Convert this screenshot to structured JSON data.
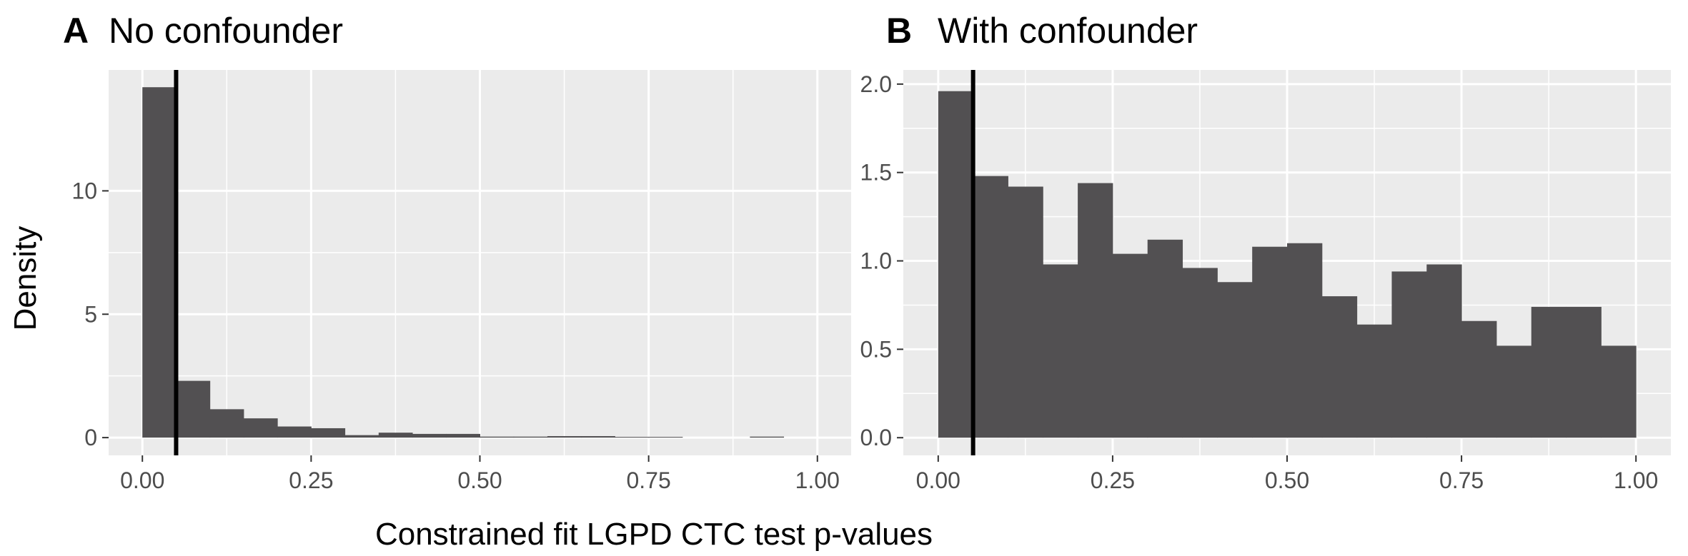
{
  "shared": {
    "xlabel": "Constrained fit LGPD CTC test p-values",
    "ylabel": "Density",
    "bar_color": "#525052",
    "panel_bg": "#ebebeb",
    "grid_color": "#ffffff",
    "vline_color": "#000000"
  },
  "chart_data": [
    {
      "type": "bar",
      "letter": "A",
      "title": "No confounder",
      "xlim": [
        -0.05,
        1.05
      ],
      "ylim": [
        -0.72,
        14.9
      ],
      "xticks": [
        0,
        0.25,
        0.5,
        0.75,
        1
      ],
      "xtick_labels": [
        "0.00",
        "0.25",
        "0.50",
        "0.75",
        "1.00"
      ],
      "yticks": [
        0,
        5,
        10
      ],
      "ytick_labels": [
        "0",
        "5",
        "10"
      ],
      "bin_width": 0.05,
      "bin_starts": [
        0,
        0.05,
        0.1,
        0.15,
        0.2,
        0.25,
        0.3,
        0.35,
        0.4,
        0.45,
        0.5,
        0.55,
        0.6,
        0.65,
        0.7,
        0.75,
        0.8,
        0.85,
        0.9,
        0.95
      ],
      "values": [
        14.2,
        2.3,
        1.15,
        0.78,
        0.45,
        0.38,
        0.1,
        0.2,
        0.15,
        0.15,
        0.04,
        0.04,
        0.06,
        0.06,
        0.03,
        0.03,
        0.0,
        0.0,
        0.04,
        0.0
      ],
      "vline": 0.05
    },
    {
      "type": "bar",
      "letter": "B",
      "title": "With confounder",
      "xlim": [
        -0.05,
        1.05
      ],
      "ylim": [
        -0.1,
        2.08
      ],
      "xticks": [
        0,
        0.25,
        0.5,
        0.75,
        1
      ],
      "xtick_labels": [
        "0.00",
        "0.25",
        "0.50",
        "0.75",
        "1.00"
      ],
      "yticks": [
        0,
        0.5,
        1,
        1.5,
        2
      ],
      "ytick_labels": [
        "0.0",
        "0.5",
        "1.0",
        "1.5",
        "2.0"
      ],
      "bin_width": 0.05,
      "bin_starts": [
        0,
        0.05,
        0.1,
        0.15,
        0.2,
        0.25,
        0.3,
        0.35,
        0.4,
        0.45,
        0.5,
        0.55,
        0.6,
        0.65,
        0.7,
        0.75,
        0.8,
        0.85,
        0.9,
        0.95
      ],
      "values": [
        1.96,
        1.48,
        1.42,
        0.98,
        1.44,
        1.04,
        1.12,
        0.96,
        0.88,
        1.08,
        1.1,
        0.8,
        0.64,
        0.94,
        0.98,
        0.66,
        0.52,
        0.74,
        0.74,
        0.52
      ],
      "vline": 0.05
    }
  ]
}
